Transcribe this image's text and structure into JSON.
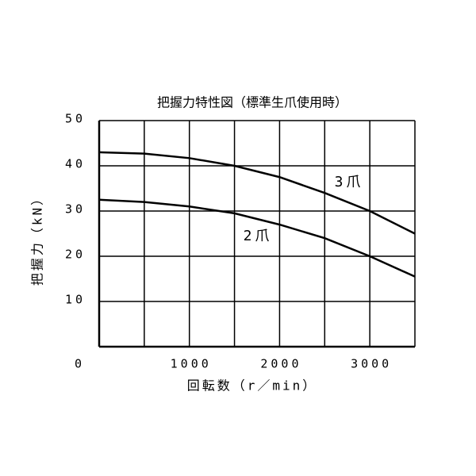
{
  "chart_data": {
    "type": "line",
    "title": "把握力特性図（標準生爪使用時）",
    "x_label": "回転数（r／min）",
    "y_label": "把握力（kN）",
    "x": [
      0,
      500,
      1000,
      1500,
      2000,
      2500,
      3000,
      3500
    ],
    "series": [
      {
        "name": "3爪",
        "color": "#000000",
        "values": [
          43,
          42.7,
          41.7,
          40,
          37.5,
          34,
          30,
          25
        ]
      },
      {
        "name": "2爪",
        "color": "#000000",
        "values": [
          32.5,
          32,
          31,
          29.5,
          27,
          24,
          20,
          15.5
        ]
      }
    ],
    "xlim": [
      0,
      3500
    ],
    "ylim": [
      0,
      50
    ],
    "xticks": [
      0,
      1000,
      2000,
      3000
    ],
    "xgrid": [
      500,
      1500,
      2500
    ],
    "yticks": [
      10,
      20,
      30,
      40,
      50
    ],
    "grid": true
  }
}
